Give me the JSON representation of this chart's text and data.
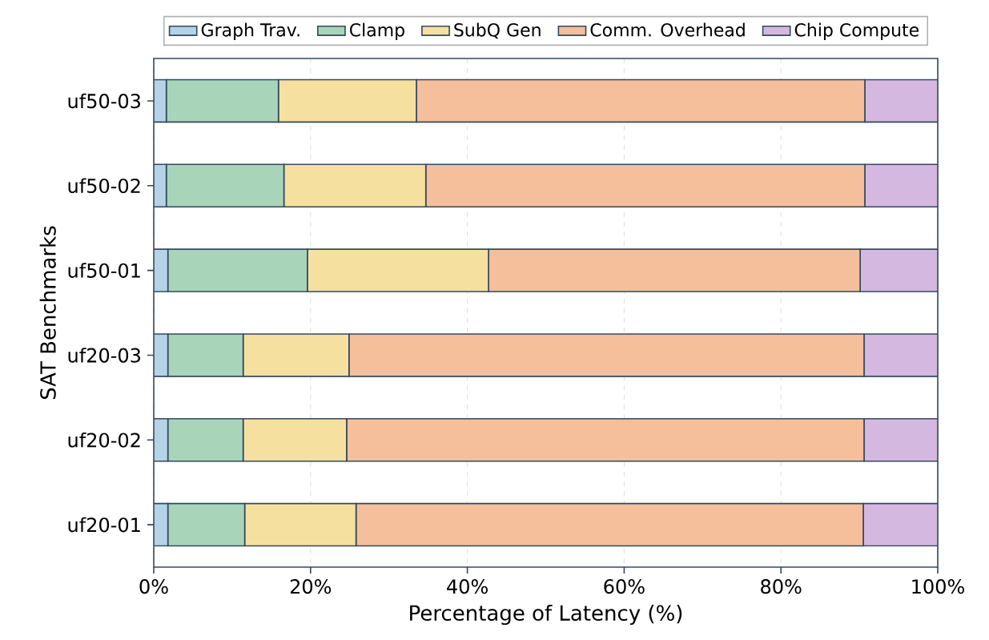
{
  "chart_data": {
    "type": "bar",
    "orientation": "horizontal",
    "stacked": true,
    "xlabel": "Percentage of Latency (%)",
    "ylabel": "SAT Benchmarks",
    "categories": [
      "uf50-03",
      "uf50-02",
      "uf50-01",
      "uf20-03",
      "uf20-02",
      "uf20-01"
    ],
    "series": [
      {
        "name": "Graph Trav.",
        "color": "#b5d3e7",
        "values": [
          1.6,
          1.6,
          1.8,
          1.8,
          1.8,
          1.8
        ]
      },
      {
        "name": "Clamp",
        "color": "#a8d5ba",
        "values": [
          14.3,
          15.0,
          17.8,
          9.6,
          9.6,
          9.8
        ]
      },
      {
        "name": "SubQ Gen",
        "color": "#f6e0a0",
        "values": [
          17.6,
          18.1,
          23.1,
          13.5,
          13.2,
          14.2
        ]
      },
      {
        "name": "Comm. Overhead",
        "color": "#f4bf9a",
        "values": [
          57.2,
          56.0,
          47.4,
          65.7,
          66.0,
          64.7
        ]
      },
      {
        "name": "Chip Compute",
        "color": "#d4b8e0",
        "values": [
          9.3,
          9.3,
          9.9,
          9.4,
          9.4,
          9.5
        ]
      }
    ],
    "xlim": [
      0,
      100
    ],
    "xticks": [
      {
        "value": 0,
        "label": "0%"
      },
      {
        "value": 20,
        "label": "20%"
      },
      {
        "value": 40,
        "label": "40%"
      },
      {
        "value": 60,
        "label": "60%"
      },
      {
        "value": 80,
        "label": "80%"
      },
      {
        "value": 100,
        "label": "100%"
      }
    ],
    "grid": "x",
    "legend": "top"
  }
}
